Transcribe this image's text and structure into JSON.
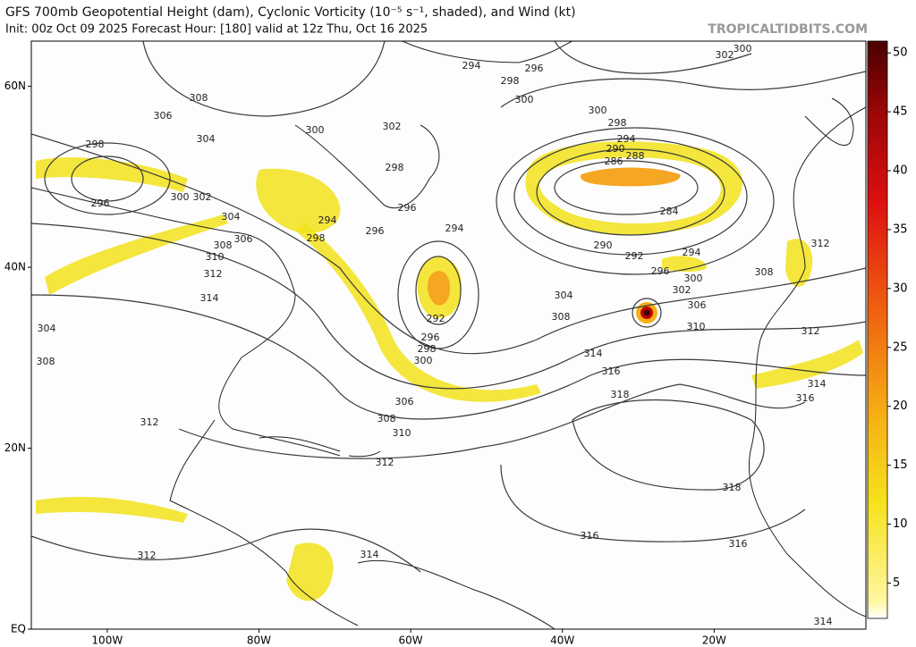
{
  "header": {
    "title": "GFS 700mb Geopotential Height (dam), Cyclonic Vorticity (10⁻⁵ s⁻¹, shaded), and Wind (kt)",
    "subtitle": "Init: 00z Oct 09 2025   Forecast Hour: [180]   valid at 12z Thu, Oct 16 2025",
    "source": "TROPICALTIDBITS.COM"
  },
  "map": {
    "lon_lim": [
      -110,
      0
    ],
    "lat_lim": [
      0,
      65
    ],
    "lon_ticks": [
      {
        "value": -100,
        "label": "100W"
      },
      {
        "value": -80,
        "label": "80W"
      },
      {
        "value": -60,
        "label": "60W"
      },
      {
        "value": -40,
        "label": "40W"
      },
      {
        "value": -20,
        "label": "20W"
      }
    ],
    "lat_ticks": [
      {
        "value": 60,
        "label": "60N"
      },
      {
        "value": 40,
        "label": "40N"
      },
      {
        "value": 20,
        "label": "20N"
      },
      {
        "value": 0,
        "label": "EQ"
      }
    ],
    "contour_labels": [
      294,
      296,
      298,
      300,
      300,
      302,
      308,
      306,
      304,
      300,
      302,
      298,
      298,
      300,
      298,
      294,
      290,
      288,
      286,
      284,
      296,
      300,
      302,
      304,
      296,
      296,
      294,
      294,
      298,
      306,
      308,
      310,
      312,
      314,
      290,
      292,
      294,
      296,
      300,
      302,
      304,
      306,
      308,
      310,
      308,
      312,
      312,
      292,
      296,
      298,
      300,
      304,
      308,
      314,
      316,
      318,
      306,
      308,
      310,
      312,
      312,
      318,
      316,
      316,
      314,
      312,
      314,
      316,
      314
    ]
  },
  "colorbar": {
    "lim": [
      2,
      51
    ],
    "ticks": [
      5,
      10,
      15,
      20,
      25,
      30,
      35,
      40,
      45,
      50
    ]
  }
}
